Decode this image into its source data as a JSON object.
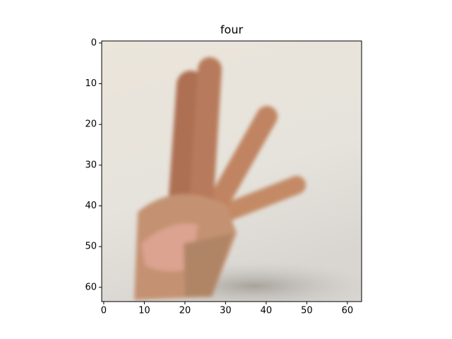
{
  "chart_data": {
    "type": "image",
    "title": "four",
    "xlim": [
      -0.5,
      63.5
    ],
    "ylim": [
      63.5,
      -0.5
    ],
    "xticks": [
      0,
      10,
      20,
      30,
      40,
      50,
      60
    ],
    "yticks": [
      0,
      10,
      20,
      30,
      40,
      50,
      60
    ]
  }
}
